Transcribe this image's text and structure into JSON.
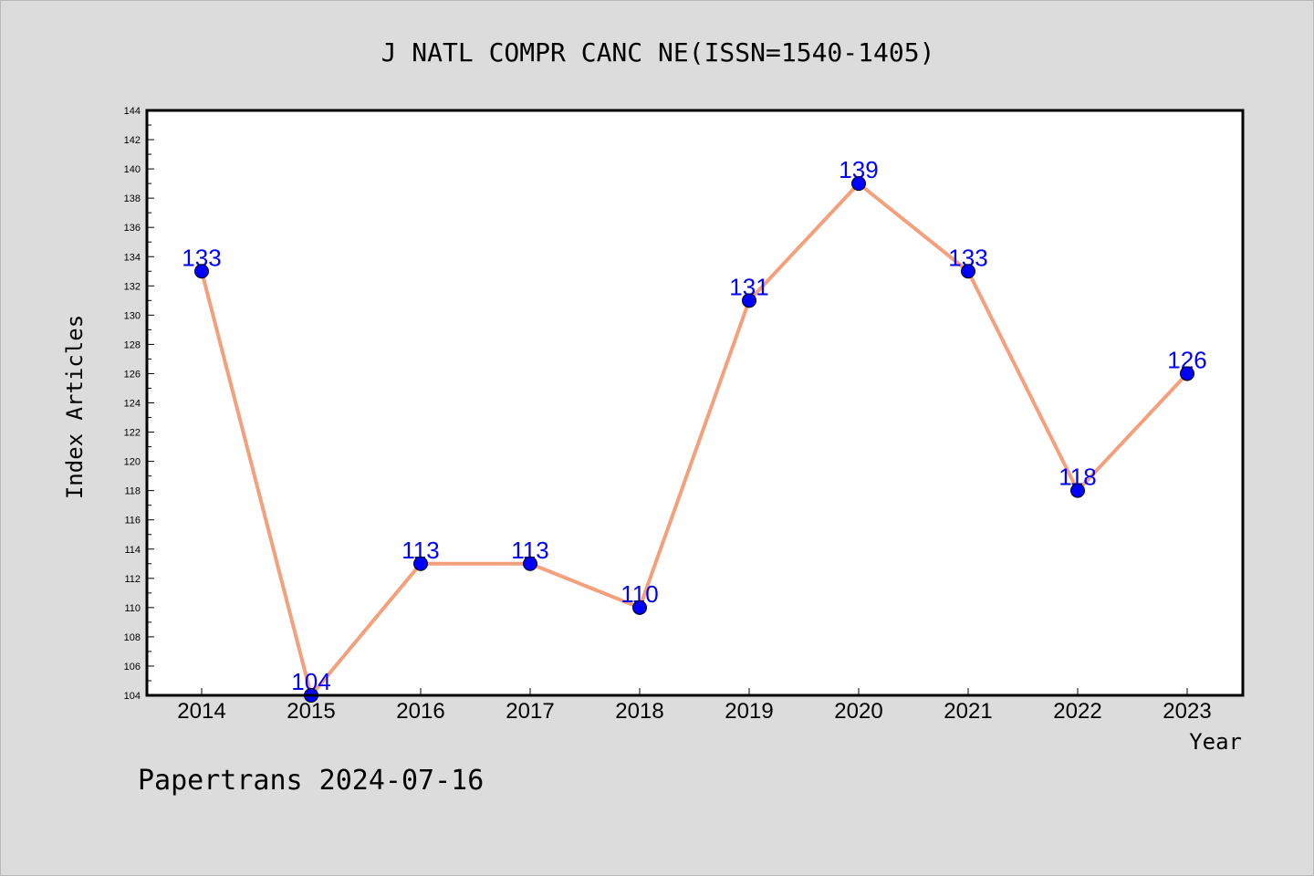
{
  "chart_data": {
    "type": "line",
    "title": "J NATL COMPR CANC NE(ISSN=1540-1405)",
    "xlabel": "Year",
    "ylabel": "Index Articles",
    "categories": [
      "2014",
      "2015",
      "2016",
      "2017",
      "2018",
      "2019",
      "2020",
      "2021",
      "2022",
      "2023"
    ],
    "series": [
      {
        "values": [
          133,
          104,
          113,
          113,
          110,
          131,
          139,
          133,
          118,
          126
        ]
      }
    ],
    "ylim": [
      104,
      144
    ],
    "ytick_step": 2,
    "grid": false,
    "data_labels": true,
    "colors": {
      "background": "#dcdcdc",
      "plot_background": "#ffffff",
      "line": "#f4a07c",
      "marker": "#0000ff",
      "data_label": "#0000ff"
    }
  },
  "footer": "Papertrans 2024-07-16"
}
